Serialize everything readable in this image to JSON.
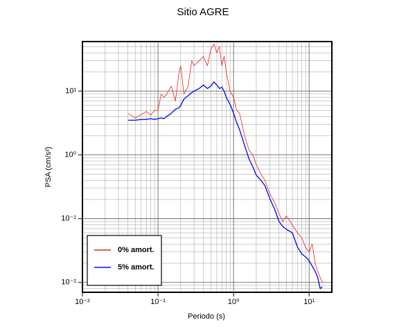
{
  "chart_data": {
    "type": "line",
    "title": "Sitio AGRE",
    "xlabel": "Periodo (s)",
    "ylabel": "PSA (cm/s²)",
    "log_x": true,
    "log_y": true,
    "grid": true,
    "legend": "lower left",
    "xlim": [
      0.01,
      20
    ],
    "ylim": [
      0.007,
      60
    ],
    "xticks": [
      {
        "value": 0.01,
        "label": "10⁻²"
      },
      {
        "value": 0.1,
        "label": "10⁻¹"
      },
      {
        "value": 1,
        "label": "10⁰"
      },
      {
        "value": 10,
        "label": "10¹"
      }
    ],
    "yticks": [
      {
        "value": 0.01,
        "label": "10⁻²"
      },
      {
        "value": 0.1,
        "label": "10⁻¹"
      },
      {
        "value": 1,
        "label": "10⁰"
      },
      {
        "value": 10,
        "label": "10¹"
      }
    ],
    "x": [
      0.04,
      0.05,
      0.06,
      0.07,
      0.08,
      0.09,
      0.1,
      0.11,
      0.12,
      0.13,
      0.15,
      0.17,
      0.19,
      0.2,
      0.22,
      0.25,
      0.28,
      0.3,
      0.35,
      0.4,
      0.45,
      0.5,
      0.55,
      0.6,
      0.65,
      0.7,
      0.75,
      0.8,
      0.9,
      1.0,
      1.1,
      1.2,
      1.4,
      1.6,
      1.8,
      2,
      2.3,
      2.6,
      3,
      3.5,
      4,
      4.5,
      5,
      6,
      7,
      8,
      9,
      10,
      11,
      12,
      13,
      14,
      15
    ],
    "series": [
      {
        "name": "0% amort.",
        "color": "#e8231b",
        "width": 0.8,
        "values": [
          4.5,
          3.8,
          4.3,
          4.8,
          4.2,
          5,
          5,
          9,
          8,
          9,
          12,
          7,
          20,
          25,
          9,
          12,
          30,
          25,
          30,
          35,
          25,
          45,
          55,
          40,
          50,
          25,
          35,
          20,
          10,
          8,
          5,
          4.5,
          2,
          1.2,
          1,
          0.7,
          0.5,
          0.4,
          0.25,
          0.18,
          0.12,
          0.09,
          0.11,
          0.08,
          0.06,
          0.05,
          0.035,
          0.03,
          0.04,
          0.02,
          0.015,
          0.012,
          0.01
        ]
      },
      {
        "name": "5% amort.",
        "color": "#0a14e6",
        "width": 1.4,
        "values": [
          3.5,
          3.5,
          3.6,
          3.6,
          3.7,
          3.6,
          3.7,
          3.8,
          3.7,
          4.0,
          4.5,
          5.2,
          5.5,
          6,
          7.5,
          8.5,
          9.5,
          10,
          11,
          12.5,
          11,
          12,
          14,
          12.5,
          11,
          11.5,
          10,
          8,
          6.2,
          4.5,
          3.2,
          2.5,
          1.4,
          0.87,
          0.65,
          0.48,
          0.4,
          0.33,
          0.21,
          0.14,
          0.09,
          0.075,
          0.068,
          0.06,
          0.036,
          0.028,
          0.025,
          0.022,
          0.018,
          0.015,
          0.012,
          0.008,
          0.0085
        ]
      }
    ]
  }
}
